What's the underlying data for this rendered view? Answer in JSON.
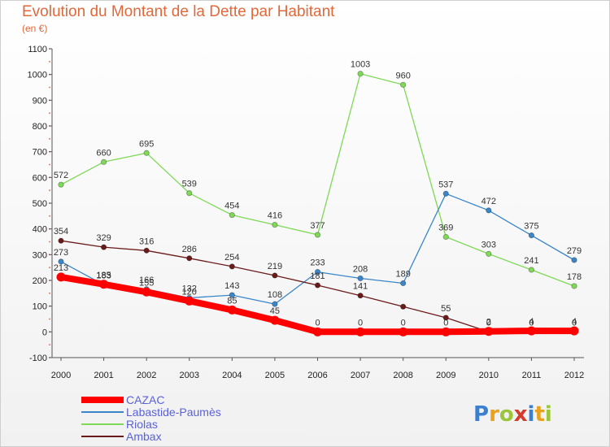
{
  "title": "Evolution du Montant de la Dette par Habitant",
  "subtitle": "(en €)",
  "logo": {
    "text": "Proxiti",
    "colors": [
      "#3a7fd0",
      "#e8a21b",
      "#9cc63a",
      "#d63a2a",
      "#3a7fd0",
      "#e8a21b",
      "#9cc63a"
    ]
  },
  "chart_data": {
    "type": "line",
    "title": "Evolution du Montant de la Dette par Habitant",
    "subtitle": "(en €)",
    "x": [
      "2000",
      "2001",
      "2002",
      "2003",
      "2004",
      "2005",
      "2006",
      "2007",
      "2008",
      "2009",
      "2010",
      "2011",
      "2012"
    ],
    "ylim": [
      -100,
      1100
    ],
    "yticks": [
      "-100",
      "0",
      "100",
      "200",
      "300",
      "400",
      "500",
      "600",
      "700",
      "800",
      "900",
      "1000",
      "1100"
    ],
    "grid": false,
    "legend_placement": "bottom-left",
    "series": [
      {
        "name": "CAZAC",
        "color": "#ff0000",
        "values": [
          213,
          185,
          155,
          120,
          85,
          45,
          0,
          0,
          0,
          0,
          2,
          4,
          4
        ],
        "labels": [
          "213",
          "185",
          "155",
          "120",
          "85",
          "45",
          "0",
          "0",
          "0",
          "0",
          "2",
          "4",
          "4"
        ]
      },
      {
        "name": "Labastide-Paumès",
        "color": "#3a86c8",
        "values": [
          273,
          183,
          166,
          132,
          143,
          108,
          233,
          208,
          189,
          537,
          472,
          375,
          279
        ],
        "labels": [
          "273",
          "183",
          "166",
          "132",
          "143",
          "108",
          "233",
          "208",
          "189",
          "537",
          "472",
          "375",
          "279"
        ]
      },
      {
        "name": "Riolas",
        "color": "#7ed957",
        "values": [
          572,
          660,
          695,
          539,
          454,
          416,
          377,
          1003,
          960,
          369,
          303,
          241,
          178
        ],
        "labels": [
          "572",
          "660",
          "695",
          "539",
          "454",
          "416",
          "377",
          "1003",
          "960",
          "369",
          "303",
          "241",
          "178"
        ]
      },
      {
        "name": "Ambax",
        "color": "#6b1a1a",
        "values": [
          354,
          329,
          316,
          286,
          254,
          219,
          181,
          141,
          98,
          55,
          0,
          0,
          0
        ],
        "labels": [
          "354",
          "329",
          "316",
          "286",
          "254",
          "219",
          "181",
          "141",
          "",
          "55",
          "0",
          "0",
          "0"
        ]
      }
    ]
  }
}
